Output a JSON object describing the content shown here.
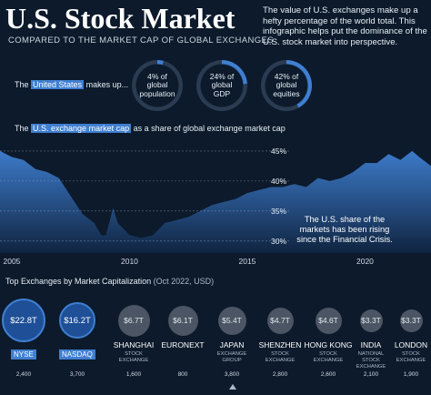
{
  "header": {
    "title": "U.S. Stock Market",
    "subtitle": "COMPARED TO THE MARKET CAP OF GLOBAL EXCHANGES",
    "intro": "The value of U.S. exchanges make up a hefty percentage of the world total. This infographic helps put the dominance of the U.S. stock market into perspective."
  },
  "makes_up": {
    "prefix": "The",
    "highlight": "United States",
    "suffix": "makes up...",
    "stats": [
      {
        "value": "4% of",
        "label1": "global",
        "label2": "population",
        "fraction": 0.04
      },
      {
        "value": "24% of",
        "label1": "global",
        "label2": "GDP",
        "fraction": 0.24
      },
      {
        "value": "42% of",
        "label1": "global",
        "label2": "equities",
        "fraction": 0.42
      }
    ]
  },
  "share": {
    "prefix": "The",
    "highlight": "U.S. exchange market cap",
    "suffix": "as a share of global exchange market cap",
    "note": "The U.S. share of the markets has been rising since the Financial Crisis."
  },
  "chart_data": {
    "type": "area",
    "xlim": [
      2004.5,
      2022.8
    ],
    "ylim": [
      28,
      46.5
    ],
    "x_ticks": [
      {
        "value": 2005,
        "label": "2005"
      },
      {
        "value": 2010,
        "label": "2010"
      },
      {
        "value": 2015,
        "label": "2015"
      },
      {
        "value": 2020,
        "label": "2020"
      }
    ],
    "y_ticks": [
      {
        "value": 30,
        "label": "30%"
      },
      {
        "value": 35,
        "label": "35%"
      },
      {
        "value": 40,
        "label": "40%"
      },
      {
        "value": 45,
        "label": "45%"
      }
    ],
    "x": [
      2004.5,
      2005,
      2005.5,
      2006,
      2006.5,
      2007,
      2007.5,
      2008,
      2008.5,
      2008.8,
      2009,
      2009.3,
      2009.5,
      2010,
      2010.5,
      2011,
      2011.5,
      2012,
      2012.5,
      2013,
      2013.5,
      2014,
      2014.5,
      2015,
      2015.5,
      2016,
      2016.5,
      2017,
      2017.5,
      2018,
      2018.5,
      2019,
      2019.5,
      2020,
      2020.5,
      2021,
      2021.5,
      2022,
      2022.3,
      2022.8
    ],
    "y": [
      45,
      44,
      43.5,
      42,
      41.5,
      40.5,
      37.5,
      34.5,
      33,
      31,
      31,
      35.5,
      33,
      31,
      30.5,
      31,
      33,
      33.5,
      34,
      35,
      36,
      36.5,
      37,
      38,
      38.5,
      39,
      39,
      39.5,
      39,
      40.5,
      40,
      40.5,
      41.5,
      43,
      43,
      44.5,
      43.5,
      45,
      44,
      42.5
    ]
  },
  "exchanges": {
    "header": "Top Exchanges by Market Capitalization",
    "unit": "(Oct 2022, USD)",
    "items": [
      {
        "name": "NYSE",
        "sub": "",
        "value": "$22.8T",
        "cap": 22.8,
        "count": "2,400",
        "highlight": true
      },
      {
        "name": "NASDAQ",
        "sub": "",
        "value": "$16.2T",
        "cap": 16.2,
        "count": "3,700",
        "highlight": true
      },
      {
        "name": "SHANGHAI",
        "sub": "STOCK EXCHANGE",
        "value": "$6.7T",
        "cap": 6.7,
        "count": "1,600",
        "highlight": false
      },
      {
        "name": "EURONEXT",
        "sub": "",
        "value": "$6.1T",
        "cap": 6.1,
        "count": "800",
        "highlight": false
      },
      {
        "name": "JAPAN",
        "sub": "EXCHANGE GROUP",
        "value": "$5.4T",
        "cap": 5.4,
        "count": "3,800",
        "highlight": false
      },
      {
        "name": "SHENZHEN",
        "sub": "STOCK EXCHANGE",
        "value": "$4.7T",
        "cap": 4.7,
        "count": "2,800",
        "highlight": false
      },
      {
        "name": "HONG KONG",
        "sub": "STOCK EXCHANGE",
        "value": "$4.6T",
        "cap": 4.6,
        "count": "2,600",
        "highlight": false
      },
      {
        "name": "INDIA",
        "sub": "NATIONAL STOCK EXCHANGE",
        "value": "$3.3T",
        "cap": 3.3,
        "count": "2,100",
        "highlight": false
      },
      {
        "name": "LONDON",
        "sub": "STOCK EXCHANGE",
        "value": "$3.3T",
        "cap": 3.3,
        "count": "1,900",
        "highlight": false
      }
    ]
  },
  "colors": {
    "background": "#0c1a2b",
    "accent": "#3f7fd1",
    "area_top": "#3f7fd1",
    "area_bottom": "#0f2440",
    "muted_bubble": "#4b5563"
  }
}
